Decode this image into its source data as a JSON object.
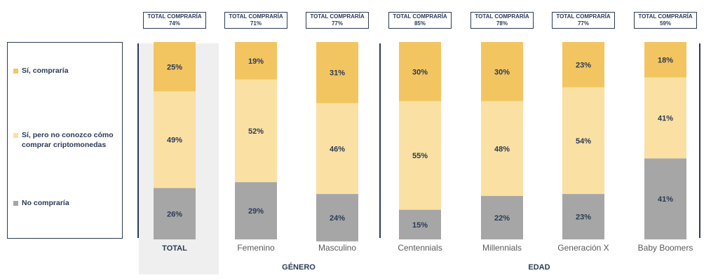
{
  "legend": [
    {
      "label": "Sí, compraría",
      "color": "#f3c561"
    },
    {
      "label": "Sí, pero no conozco cómo\ncomprar criptomonedas",
      "color": "#fae0a2"
    },
    {
      "label": "No compraría",
      "color": "#a6a6a6"
    }
  ],
  "groups": [
    {
      "label": "GÉNERO"
    },
    {
      "label": "EDAD"
    }
  ],
  "chart_data": {
    "type": "bar",
    "stacked": true,
    "categories": [
      "TOTAL",
      "Femenino",
      "Masculino",
      "Centennials",
      "Millennials",
      "Generación X",
      "Baby Boomers"
    ],
    "series": [
      {
        "name": "Sí, compraría",
        "values": [
          25,
          19,
          31,
          30,
          30,
          23,
          18
        ],
        "color": "#f3c561"
      },
      {
        "name": "Sí, pero no conozco cómo comprar criptomonedas",
        "values": [
          49,
          52,
          46,
          55,
          48,
          54,
          41
        ],
        "color": "#fae0a2"
      },
      {
        "name": "No compraría",
        "values": [
          26,
          29,
          24,
          15,
          22,
          23,
          41
        ],
        "color": "#a6a6a6"
      }
    ],
    "totals": {
      "label": "TOTAL COMPRARÍA",
      "values": [
        "74%",
        "71%",
        "77%",
        "85%",
        "78%",
        "77%",
        "59%"
      ]
    },
    "ylim": [
      0,
      100
    ]
  }
}
